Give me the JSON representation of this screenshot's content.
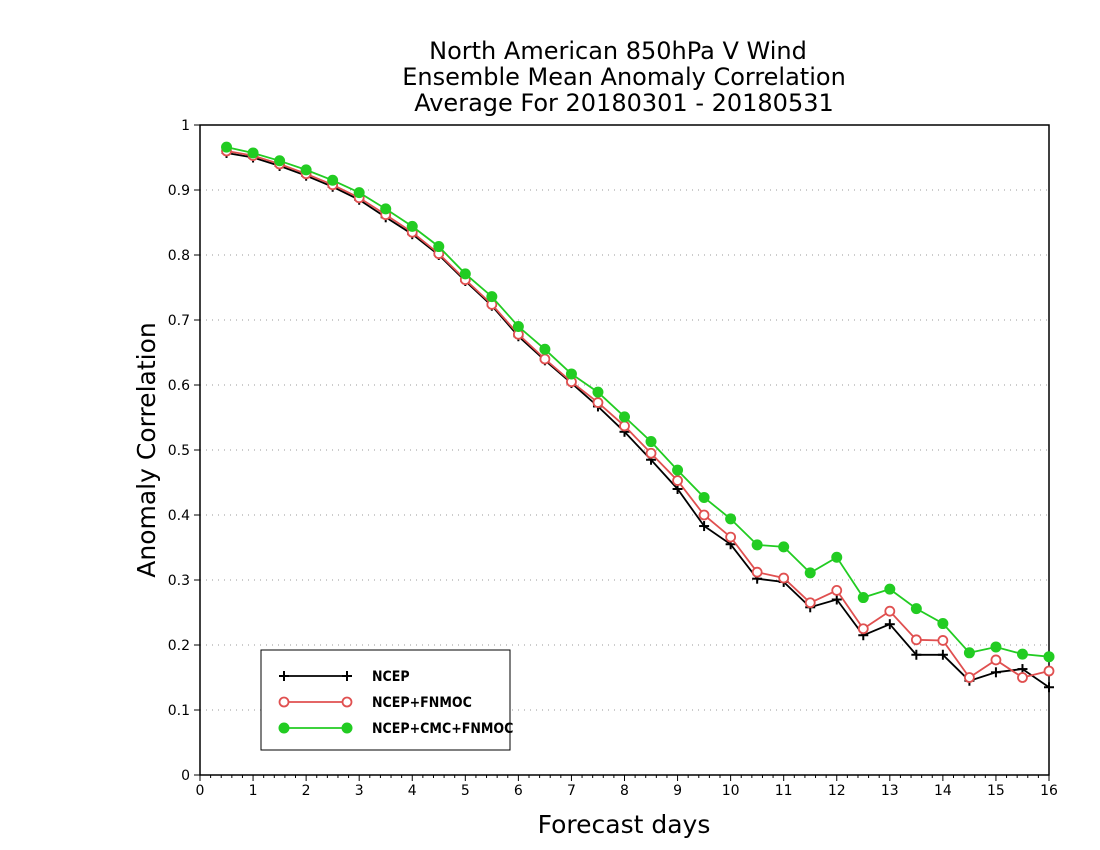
{
  "chart_data": {
    "type": "line",
    "title": [
      "North American 850hPa V Wind",
      "Ensemble Mean Anomaly Correlation",
      "Average For 20180301 - 20180531"
    ],
    "xlabel": "Forecast days",
    "ylabel": "Anomaly Correlation",
    "xlim": [
      0,
      16
    ],
    "ylim": [
      0,
      1
    ],
    "xticks": [
      "0",
      "1",
      "2",
      "3",
      "4",
      "5",
      "6",
      "7",
      "8",
      "9",
      "10",
      "11",
      "12",
      "13",
      "14",
      "15",
      "16"
    ],
    "yticks": [
      "0",
      "0.1",
      "0.2",
      "0.3",
      "0.4",
      "0.5",
      "0.6",
      "0.7",
      "0.8",
      "0.9",
      "1"
    ],
    "grid": "horizontal dotted",
    "legend_position": "bottom-left",
    "x": [
      0.5,
      1,
      1.5,
      2,
      2.5,
      3,
      3.5,
      4,
      4.5,
      5,
      5.5,
      6,
      6.5,
      7,
      7.5,
      8,
      8.5,
      9,
      9.5,
      10,
      10.5,
      11,
      11.5,
      12,
      12.5,
      13,
      13.5,
      14,
      14.5,
      15,
      15.5,
      16
    ],
    "series": [
      {
        "name": "NCEP",
        "color": "#000000",
        "marker": "plus",
        "values": [
          0.957,
          0.95,
          0.937,
          0.922,
          0.905,
          0.885,
          0.858,
          0.832,
          0.8,
          0.76,
          0.722,
          0.675,
          0.638,
          0.603,
          0.567,
          0.528,
          0.485,
          0.44,
          0.383,
          0.355,
          0.302,
          0.297,
          0.258,
          0.27,
          0.215,
          0.232,
          0.185,
          0.185,
          0.145,
          0.158,
          0.163,
          0.135
        ]
      },
      {
        "name": "NCEP+FNMOC",
        "color": "#e05050",
        "marker": "open-circle",
        "values": [
          0.96,
          0.953,
          0.94,
          0.925,
          0.908,
          0.888,
          0.862,
          0.835,
          0.802,
          0.762,
          0.724,
          0.678,
          0.64,
          0.605,
          0.573,
          0.537,
          0.495,
          0.453,
          0.4,
          0.366,
          0.312,
          0.303,
          0.265,
          0.284,
          0.225,
          0.252,
          0.208,
          0.207,
          0.15,
          0.177,
          0.15,
          0.16
        ]
      },
      {
        "name": "NCEP+CMC+FNMOC",
        "color": "#22cc22",
        "marker": "filled-circle",
        "values": [
          0.966,
          0.957,
          0.945,
          0.931,
          0.915,
          0.896,
          0.871,
          0.844,
          0.813,
          0.771,
          0.736,
          0.69,
          0.655,
          0.617,
          0.589,
          0.551,
          0.513,
          0.469,
          0.427,
          0.394,
          0.354,
          0.351,
          0.311,
          0.335,
          0.273,
          0.286,
          0.256,
          0.233,
          0.188,
          0.197,
          0.186,
          0.182
        ]
      }
    ]
  }
}
